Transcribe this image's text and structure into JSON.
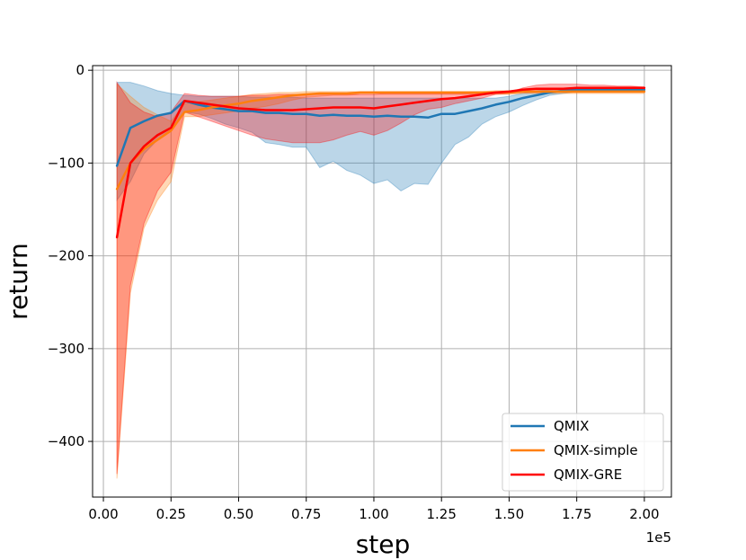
{
  "chart_data": {
    "type": "line",
    "title": "",
    "xlabel": "step",
    "ylabel": "return",
    "x_offset_label": "1e5",
    "xlim": [
      -0.04,
      2.1
    ],
    "ylim": [
      -460,
      5
    ],
    "xticks": [
      0.0,
      0.25,
      0.5,
      0.75,
      1.0,
      1.25,
      1.5,
      1.75,
      2.0
    ],
    "xtick_labels": [
      "0.00",
      "0.25",
      "0.50",
      "0.75",
      "1.00",
      "1.25",
      "1.50",
      "1.75",
      "2.00"
    ],
    "yticks": [
      0,
      -100,
      -200,
      -300,
      -400
    ],
    "ytick_labels": [
      "0",
      "−100",
      "−200",
      "−300",
      "−400"
    ],
    "grid": true,
    "legend_position": "lower-right",
    "x": [
      0.05,
      0.1,
      0.15,
      0.2,
      0.25,
      0.3,
      0.35,
      0.4,
      0.45,
      0.5,
      0.55,
      0.6,
      0.65,
      0.7,
      0.75,
      0.8,
      0.85,
      0.9,
      0.95,
      1.0,
      1.05,
      1.1,
      1.15,
      1.2,
      1.25,
      1.3,
      1.35,
      1.4,
      1.45,
      1.5,
      1.55,
      1.6,
      1.65,
      1.7,
      1.75,
      1.8,
      1.85,
      1.9,
      1.95,
      2.0
    ],
    "series": [
      {
        "name": "QMIX",
        "color": "#1f77b4",
        "values": [
          -103,
          -62,
          -55,
          -49,
          -46,
          -33,
          -37,
          -40,
          -42,
          -44,
          -44,
          -46,
          -46,
          -47,
          -47,
          -49,
          -48,
          -49,
          -49,
          -50,
          -49,
          -50,
          -50,
          -51,
          -47,
          -47,
          -44,
          -41,
          -37,
          -34,
          -30,
          -27,
          -24,
          -22,
          -21,
          -21,
          -21,
          -21,
          -21,
          -21
        ],
        "upper": [
          -13,
          -13,
          -17,
          -22,
          -25,
          -27,
          -28,
          -28,
          -28,
          -28,
          -29,
          -29,
          -29,
          -29,
          -30,
          -30,
          -30,
          -30,
          -30,
          -30,
          -30,
          -30,
          -30,
          -30,
          -30,
          -30,
          -30,
          -30,
          -30,
          -28,
          -25,
          -22,
          -21,
          -20,
          -19,
          -19,
          -19,
          -19,
          -19,
          -19
        ],
        "lower": [
          -140,
          -120,
          -90,
          -75,
          -65,
          -45,
          -47,
          -52,
          -58,
          -62,
          -67,
          -78,
          -80,
          -83,
          -83,
          -105,
          -98,
          -108,
          -113,
          -122,
          -118,
          -130,
          -122,
          -123,
          -100,
          -80,
          -72,
          -58,
          -50,
          -45,
          -38,
          -32,
          -27,
          -25,
          -23,
          -23,
          -23,
          -23,
          -23,
          -23
        ]
      },
      {
        "name": "QMIX-simple",
        "color": "#ff7f0e",
        "values": [
          -128,
          -100,
          -85,
          -75,
          -65,
          -45,
          -43,
          -40,
          -38,
          -36,
          -33,
          -31,
          -29,
          -27,
          -26,
          -25,
          -25,
          -25,
          -24,
          -24,
          -24,
          -24,
          -24,
          -24,
          -24,
          -24,
          -24,
          -24,
          -24,
          -24,
          -23,
          -23,
          -23,
          -23,
          -23,
          -23,
          -23,
          -23,
          -23,
          -23
        ],
        "upper": [
          -15,
          -28,
          -40,
          -48,
          -55,
          -36,
          -34,
          -32,
          -30,
          -28,
          -26,
          -25,
          -24,
          -24,
          -23,
          -23,
          -23,
          -23,
          -23,
          -23,
          -23,
          -23,
          -23,
          -23,
          -23,
          -23,
          -23,
          -23,
          -22,
          -22,
          -22,
          -22,
          -22,
          -22,
          -22,
          -22,
          -22,
          -22,
          -22,
          -22
        ],
        "lower": [
          -440,
          -240,
          -170,
          -140,
          -120,
          -50,
          -50,
          -48,
          -46,
          -44,
          -41,
          -39,
          -36,
          -32,
          -29,
          -28,
          -27,
          -27,
          -26,
          -26,
          -26,
          -26,
          -26,
          -26,
          -26,
          -26,
          -26,
          -26,
          -26,
          -26,
          -25,
          -25,
          -25,
          -25,
          -25,
          -25,
          -25,
          -25,
          -25,
          -25
        ]
      },
      {
        "name": "QMIX-GRE",
        "color": "#ff0000",
        "values": [
          -180,
          -100,
          -82,
          -70,
          -62,
          -33,
          -35,
          -37,
          -39,
          -41,
          -42,
          -43,
          -43,
          -43,
          -42,
          -41,
          -40,
          -40,
          -40,
          -41,
          -39,
          -37,
          -35,
          -33,
          -31,
          -30,
          -28,
          -26,
          -24,
          -23,
          -21,
          -20,
          -20,
          -20,
          -19,
          -19,
          -19,
          -19,
          -19,
          -19
        ],
        "upper": [
          -13,
          -35,
          -45,
          -50,
          -45,
          -25,
          -27,
          -28,
          -28,
          -28,
          -27,
          -27,
          -26,
          -26,
          -26,
          -26,
          -26,
          -26,
          -26,
          -26,
          -25,
          -25,
          -25,
          -25,
          -25,
          -25,
          -25,
          -25,
          -24,
          -24,
          -19,
          -16,
          -15,
          -15,
          -15,
          -16,
          -16,
          -17,
          -17,
          -18
        ],
        "lower": [
          -435,
          -232,
          -165,
          -130,
          -110,
          -45,
          -50,
          -55,
          -60,
          -65,
          -70,
          -74,
          -76,
          -78,
          -78,
          -78,
          -75,
          -70,
          -66,
          -70,
          -65,
          -57,
          -48,
          -42,
          -40,
          -36,
          -33,
          -30,
          -26,
          -25,
          -24,
          -24,
          -24,
          -23,
          -22,
          -22,
          -22,
          -22,
          -22,
          -22
        ]
      }
    ]
  }
}
